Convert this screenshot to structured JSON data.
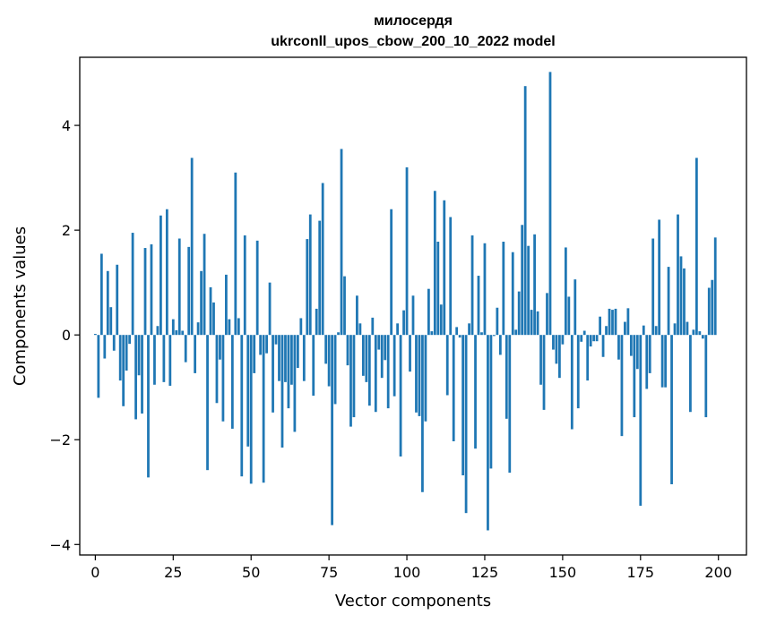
{
  "chart_data": {
    "type": "bar",
    "title": "милосердя",
    "subtitle": "ukrconll_upos_cbow_200_10_2022 model",
    "xlabel": "Vector components",
    "ylabel": "Components values",
    "xlim": [
      -5,
      209
    ],
    "ylim": [
      -4.2,
      5.3
    ],
    "xticks": [
      0,
      25,
      50,
      75,
      100,
      125,
      150,
      175,
      200
    ],
    "yticks": [
      -4,
      -2,
      0,
      2,
      4
    ],
    "ytick_labels": [
      "−4",
      "−2",
      "0",
      "2",
      "4"
    ],
    "bar_color": "#1f77b4",
    "grid": false,
    "values": [
      0.02,
      -1.2,
      1.55,
      -0.45,
      1.22,
      0.53,
      -0.3,
      1.34,
      -0.87,
      -1.36,
      -0.68,
      -0.17,
      1.95,
      -1.61,
      -0.77,
      -1.5,
      1.66,
      -2.72,
      1.73,
      -0.95,
      0.17,
      2.28,
      -0.9,
      2.4,
      -0.97,
      0.3,
      0.09,
      1.84,
      0.08,
      -0.52,
      1.68,
      3.38,
      -0.73,
      0.24,
      1.22,
      1.93,
      -2.58,
      0.91,
      0.62,
      -1.3,
      -0.47,
      -1.65,
      1.15,
      0.3,
      -1.79,
      3.1,
      0.32,
      -2.7,
      1.9,
      -2.13,
      -2.84,
      -0.73,
      1.8,
      -0.38,
      -2.82,
      -0.35,
      1.0,
      -1.48,
      -0.18,
      -0.88,
      -2.15,
      -0.9,
      -1.4,
      -0.95,
      -1.85,
      -0.63,
      0.32,
      -0.88,
      1.83,
      2.3,
      -1.16,
      0.5,
      2.18,
      2.9,
      -0.55,
      -0.98,
      -3.63,
      -1.32,
      0.05,
      3.55,
      1.12,
      -0.58,
      -1.75,
      -1.57,
      0.75,
      0.22,
      -0.78,
      -0.9,
      -1.35,
      0.33,
      -1.47,
      -0.28,
      -0.82,
      -0.48,
      -1.4,
      2.4,
      -1.17,
      0.22,
      -2.32,
      0.47,
      3.2,
      -0.7,
      0.75,
      -1.48,
      -1.55,
      -3.0,
      -1.65,
      0.88,
      0.07,
      2.75,
      1.78,
      0.58,
      2.57,
      -1.15,
      2.25,
      -2.03,
      0.15,
      -0.05,
      -2.68,
      -3.4,
      0.22,
      1.9,
      -2.17,
      1.13,
      0.05,
      1.75,
      -3.73,
      -2.55,
      -0.02,
      0.52,
      -0.38,
      1.78,
      -1.6,
      -2.63,
      1.58,
      0.1,
      0.83,
      2.1,
      4.75,
      1.7,
      0.48,
      1.92,
      0.45,
      -0.95,
      -1.43,
      0.8,
      5.02,
      -0.28,
      -0.55,
      -0.82,
      -0.18,
      1.67,
      0.73,
      -1.8,
      1.06,
      -1.4,
      -0.13,
      0.08,
      -0.87,
      -0.22,
      -0.12,
      -0.12,
      0.35,
      -0.42,
      0.17,
      0.5,
      0.48,
      0.5,
      -0.47,
      -1.93,
      0.25,
      0.51,
      -0.4,
      -1.57,
      -0.65,
      -3.26,
      0.18,
      -1.03,
      -0.73,
      1.84,
      0.17,
      2.2,
      -1.0,
      -1.0,
      1.3,
      -2.85,
      0.22,
      2.3,
      1.5,
      1.27,
      0.25,
      -1.47,
      0.1,
      3.38,
      0.07,
      -0.07,
      -1.57,
      0.9,
      1.05,
      1.86
    ]
  }
}
